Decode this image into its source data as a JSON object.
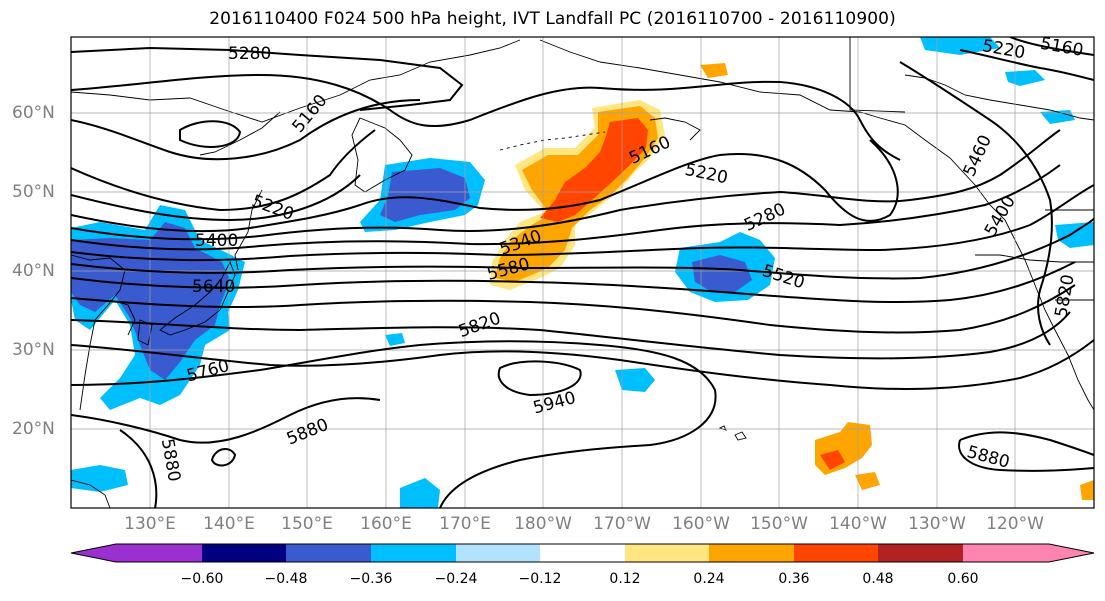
{
  "title": "2016110400 F024 500 hPa height, IVT Landfall PC (2016110700 - 2016110900)",
  "lat_labels": [
    "60°N",
    "50°N",
    "40°N",
    "30°N",
    "20°N"
  ],
  "lon_labels": [
    "130°E",
    "140°E",
    "150°E",
    "160°E",
    "170°E",
    "180°W",
    "170°W",
    "160°W",
    "150°W",
    "140°W",
    "130°W",
    "120°W"
  ],
  "contour_labels": [
    "5280",
    "5160",
    "5220",
    "5400",
    "5640",
    "5760",
    "5880",
    "5880",
    "5940",
    "5820",
    "5340",
    "5580",
    "5160",
    "5220",
    "5280",
    "5520",
    "5220",
    "5160",
    "5460",
    "5400",
    "5820",
    "5880"
  ],
  "colorbar": {
    "tick_labels": [
      "−0.60",
      "−0.48",
      "−0.36",
      "−0.24",
      "−0.12",
      "0.12",
      "0.24",
      "0.36",
      "0.48",
      "0.60"
    ],
    "colors": [
      "#9b30d0",
      "#000080",
      "#3a5bd0",
      "#00bfff",
      "#b3e2ff",
      "#ffffff",
      "#ffe680",
      "#ffa500",
      "#ff4500",
      "#b22222",
      "#ff85b0"
    ]
  },
  "map_colors": {
    "contour": "#000000",
    "coast": "#000000",
    "grid": "#a0a0a0"
  }
}
